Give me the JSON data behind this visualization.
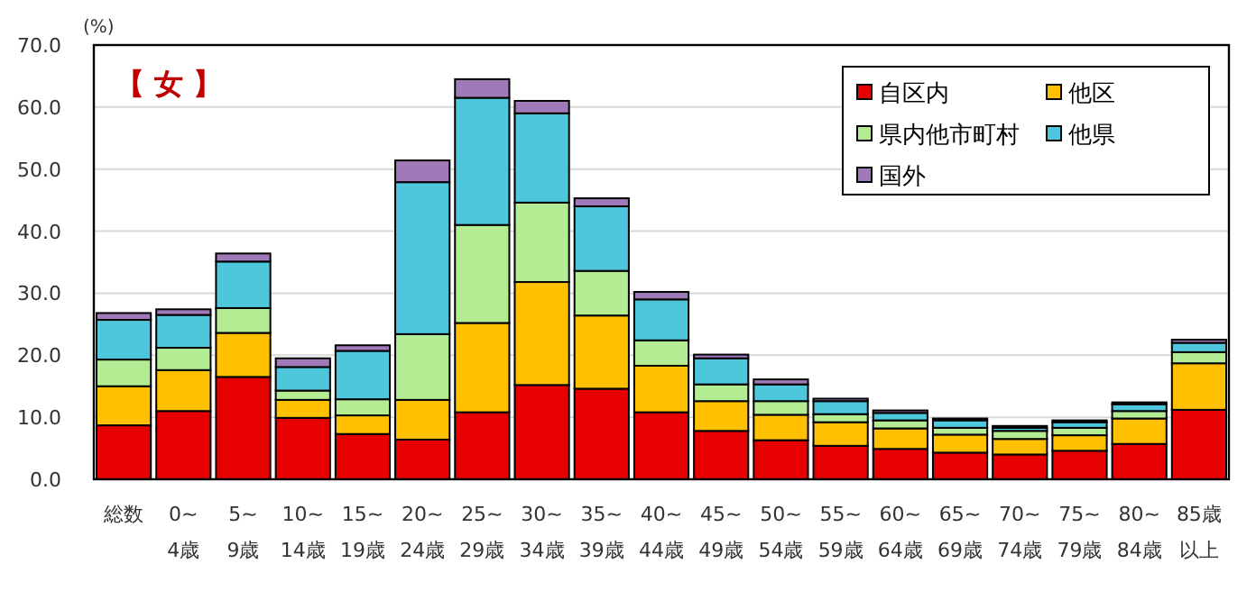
{
  "chart_data": {
    "type": "bar",
    "stacked": true,
    "ylabel": "(%)",
    "annotations": [
      "【 女 】"
    ],
    "categories": [
      "総数",
      "0~4歳",
      "5~9歳",
      "10~14歳",
      "15~19歳",
      "20~24歳",
      "25~29歳",
      "30~34歳",
      "35~39歳",
      "40~44歳",
      "45~49歳",
      "50~54歳",
      "55~59歳",
      "60~64歳",
      "65~69歳",
      "70~74歳",
      "75~79歳",
      "80~84歳",
      "85歳以上"
    ],
    "series": [
      {
        "name": "自区内",
        "color": "#e60000",
        "values": [
          8.7,
          11.0,
          16.5,
          9.9,
          7.3,
          6.4,
          10.8,
          15.2,
          14.6,
          10.8,
          7.8,
          6.3,
          5.4,
          4.9,
          4.3,
          4.0,
          4.6,
          5.7,
          11.2
        ]
      },
      {
        "name": "他区",
        "color": "#ffc000",
        "values": [
          6.3,
          6.6,
          7.1,
          2.9,
          3.0,
          6.4,
          14.4,
          16.6,
          11.8,
          7.5,
          4.8,
          4.1,
          3.8,
          3.3,
          2.9,
          2.5,
          2.5,
          4.1,
          7.5
        ]
      },
      {
        "name": "県内他市町村",
        "color": "#b4ec94",
        "values": [
          4.3,
          3.6,
          4.0,
          1.5,
          2.6,
          10.6,
          15.8,
          12.8,
          7.2,
          4.1,
          2.7,
          2.2,
          1.3,
          1.3,
          1.1,
          1.3,
          1.2,
          1.2,
          1.8
        ]
      },
      {
        "name": "他県",
        "color": "#4ec6dc",
        "values": [
          6.4,
          5.3,
          7.5,
          3.8,
          7.8,
          24.5,
          20.5,
          14.4,
          10.4,
          6.6,
          4.2,
          2.7,
          2.1,
          1.2,
          1.2,
          0.5,
          0.9,
          1.1,
          1.5
        ]
      },
      {
        "name": "国外",
        "color": "#a07ab8",
        "values": [
          1.1,
          0.9,
          1.3,
          1.4,
          0.9,
          3.5,
          3.0,
          2.0,
          1.3,
          1.2,
          0.6,
          0.8,
          0.4,
          0.4,
          0.3,
          0.3,
          0.3,
          0.3,
          0.5
        ]
      }
    ],
    "ylim": [
      0,
      70
    ],
    "yticks": [
      {
        "value": 0,
        "label": "0.0"
      },
      {
        "value": 10,
        "label": "10.0"
      },
      {
        "value": 20,
        "label": "20.0"
      },
      {
        "value": 30,
        "label": "30.0"
      },
      {
        "value": 40,
        "label": "40.0"
      },
      {
        "value": 50,
        "label": "50.0"
      },
      {
        "value": 60,
        "label": "60.0"
      },
      {
        "value": 70,
        "label": "70.0"
      }
    ],
    "grid": "y",
    "legend": "top right"
  }
}
